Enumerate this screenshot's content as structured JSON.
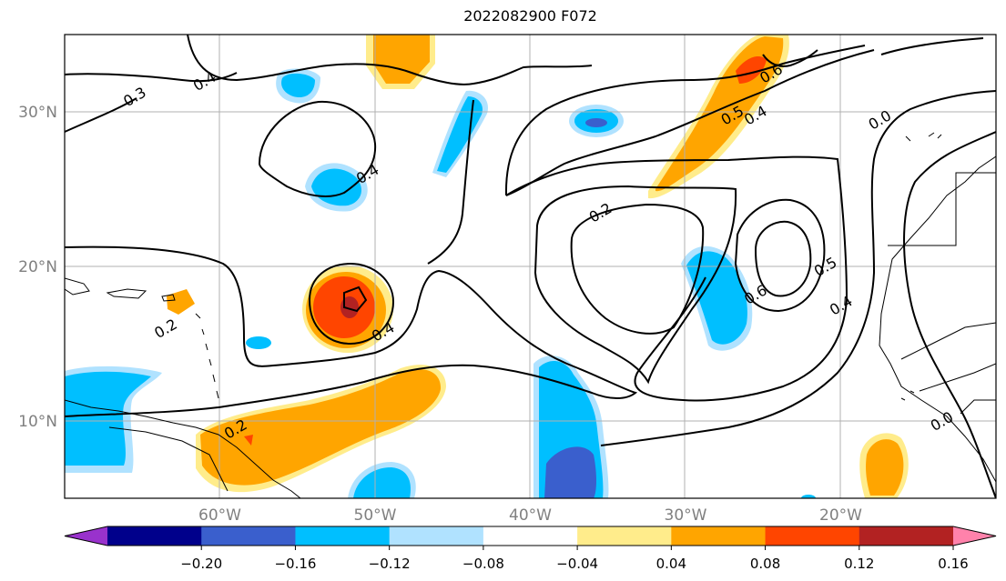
{
  "title": "2022082900 F072",
  "axes": {
    "lon_labels": [
      {
        "text": "60°W",
        "lon": -60
      },
      {
        "text": "50°W",
        "lon": -50
      },
      {
        "text": "40°W",
        "lon": -40
      },
      {
        "text": "30°W",
        "lon": -30
      },
      {
        "text": "20°W",
        "lon": -20
      }
    ],
    "lat_labels": [
      {
        "text": "30°N",
        "lat": 30
      },
      {
        "text": "20°N",
        "lat": 20
      },
      {
        "text": "10°N",
        "lat": 10
      }
    ],
    "lon_range": [
      -70,
      -10
    ],
    "lat_range": [
      5,
      35
    ],
    "grid": true
  },
  "colorbar": {
    "tick_labels": [
      "−0.20",
      "−0.16",
      "−0.12",
      "−0.08",
      "−0.04",
      "0.04",
      "0.08",
      "0.12",
      "0.16",
      "0.20"
    ],
    "colors": [
      "#9932CC",
      "#00008B",
      "#3A5FCD",
      "#00BFFF",
      "#B0E2FF",
      "#FFFFFF",
      "#FFEC8B",
      "#FFA500",
      "#FF4500",
      "#B22222",
      "#FF82AB"
    ],
    "extend": "both"
  },
  "contour_labels": [
    {
      "text": "0.4",
      "lon": -61,
      "lat": 32
    },
    {
      "text": "0.3",
      "lon": -65.5,
      "lat": 31
    },
    {
      "text": "0.4",
      "lon": -50.5,
      "lat": 26
    },
    {
      "text": "0.4",
      "lon": -49.5,
      "lat": 15.8
    },
    {
      "text": "0.2",
      "lon": -63.5,
      "lat": 16
    },
    {
      "text": "0.2",
      "lon": -59,
      "lat": 9.5
    },
    {
      "text": "0.2",
      "lon": -35.5,
      "lat": 23.5
    },
    {
      "text": "0.5",
      "lon": -27,
      "lat": 29.8
    },
    {
      "text": "0.4",
      "lon": -25.5,
      "lat": 29.8
    },
    {
      "text": "0.6",
      "lon": -24.5,
      "lat": 32.5
    },
    {
      "text": "0.6",
      "lon": -25.5,
      "lat": 18.2
    },
    {
      "text": "0.5",
      "lon": -21,
      "lat": 20
    },
    {
      "text": "0.4",
      "lon": -20,
      "lat": 17.5
    },
    {
      "text": "0.0",
      "lon": -17.5,
      "lat": 29.5
    },
    {
      "text": "0.0",
      "lon": -13.5,
      "lat": 10
    }
  ],
  "chart_data": {
    "type": "heatmap",
    "title": "2022082900 F072",
    "x_ticks": [
      "60°W",
      "50°W",
      "40°W",
      "30°W",
      "20°W"
    ],
    "y_ticks": [
      "30°N",
      "20°N",
      "10°N"
    ],
    "levels": [
      -0.2,
      -0.16,
      -0.12,
      -0.08,
      -0.04,
      0.04,
      0.08,
      0.12,
      0.16,
      0.2
    ],
    "filled_features": [
      {
        "label": "positive anomaly near 18N 52W",
        "lon": -52,
        "lat": 17.5,
        "peak": 0.18
      },
      {
        "label": "positive anomaly band 6-12N 45-60W",
        "lon": -52,
        "lat": 9,
        "peak": 0.14
      },
      {
        "label": "positive anomaly near 32N 26W",
        "lon": -27,
        "lat": 30,
        "peak": 0.14
      },
      {
        "label": "negative anomaly near 8N 37W",
        "lon": -37,
        "lat": 8,
        "peak": -0.16
      },
      {
        "label": "negative anomaly near 18N 28W",
        "lon": -28,
        "lat": 18,
        "peak": -0.12
      },
      {
        "label": "negative anomaly near 10N 67W",
        "lon": -67,
        "lat": 10,
        "peak": -0.12
      }
    ]
  }
}
